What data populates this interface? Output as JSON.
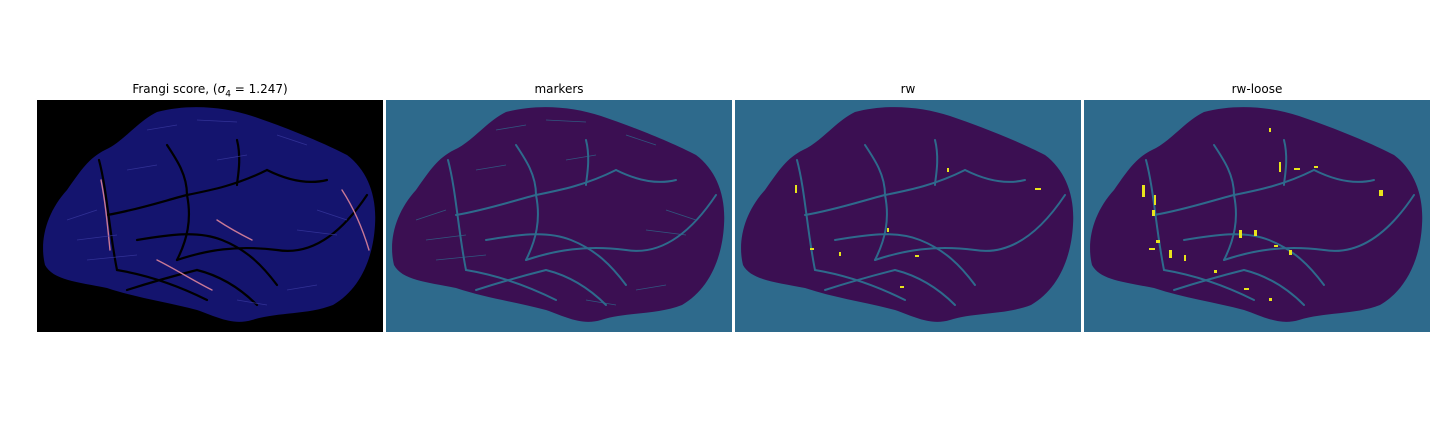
{
  "figure": {
    "panels": [
      {
        "id": "frangi",
        "title_prefix": "Frangi score, (",
        "title_sigma": "σ",
        "title_sub": "4",
        "title_suffix": " = 1.247)",
        "background_color": "#000000",
        "tissue_color": "#14146e",
        "vessel_color": "#c87896"
      },
      {
        "id": "markers",
        "title": "markers",
        "background_color": "#2e6a8c",
        "tissue_color": "#3b0f52",
        "vessel_color": "#2e6a8c"
      },
      {
        "id": "rw",
        "title": "rw",
        "background_color": "#2e6a8c",
        "tissue_color": "#3b0f52",
        "vessel_color": "#2e6a8c",
        "highlight_color": "#e8e41c"
      },
      {
        "id": "rw-loose",
        "title": "rw-loose",
        "background_color": "#2e6a8c",
        "tissue_color": "#3b0f52",
        "vessel_color": "#2e6a8c",
        "highlight_color": "#e8e41c"
      }
    ]
  }
}
